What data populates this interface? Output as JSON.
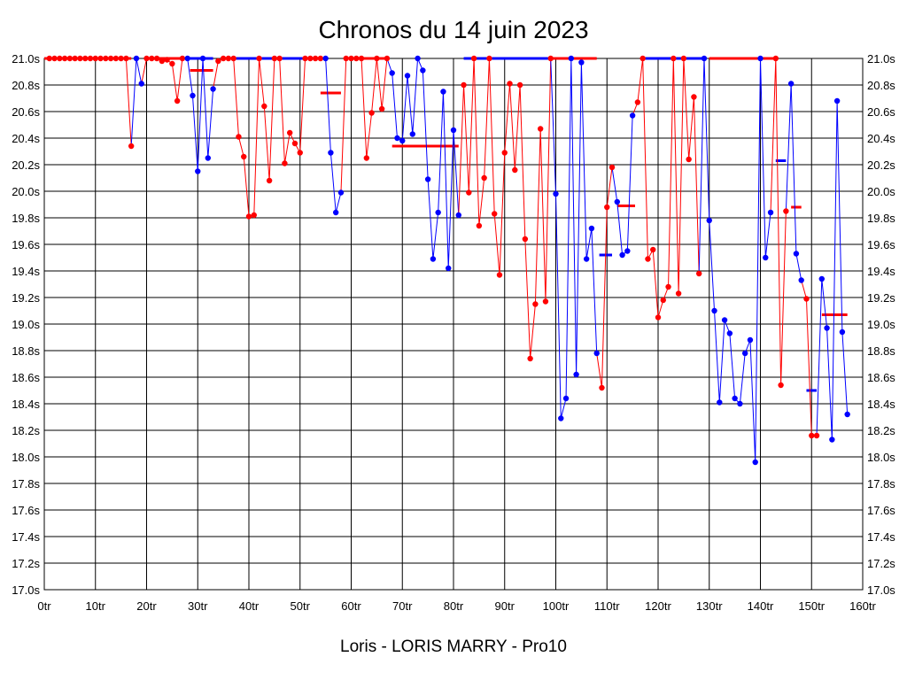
{
  "chart_data": {
    "type": "line",
    "title": "Chronos du 14 juin 2023",
    "footer": "Loris - LORIS MARRY - Pro10",
    "xlim": [
      0,
      160
    ],
    "ylim": [
      17.0,
      21.0
    ],
    "grid": true,
    "x_ticks": [
      0,
      10,
      20,
      30,
      40,
      50,
      60,
      70,
      80,
      90,
      100,
      110,
      120,
      130,
      140,
      150,
      160
    ],
    "x_tick_labels": [
      "0tr",
      "10tr",
      "20tr",
      "30tr",
      "40tr",
      "50tr",
      "60tr",
      "70tr",
      "80tr",
      "90tr",
      "100tr",
      "110tr",
      "120tr",
      "130tr",
      "140tr",
      "150tr",
      "160tr"
    ],
    "y_ticks": [
      17.0,
      17.2,
      17.4,
      17.6,
      17.8,
      18.0,
      18.2,
      18.4,
      18.6,
      18.8,
      19.0,
      19.2,
      19.4,
      19.6,
      19.8,
      20.0,
      20.2,
      20.4,
      20.6,
      20.8,
      21.0
    ],
    "y_tick_labels": [
      "17.0s",
      "17.2s",
      "17.4s",
      "17.6s",
      "17.8s",
      "18.0s",
      "18.2s",
      "18.4s",
      "18.6s",
      "18.8s",
      "19.0s",
      "19.2s",
      "19.4s",
      "19.6s",
      "19.8s",
      "20.0s",
      "20.2s",
      "20.4s",
      "20.6s",
      "20.8s",
      "21.0s"
    ],
    "colors": {
      "red": "#ff0000",
      "blue": "#0000ff",
      "grid": "#000000"
    },
    "segments": [
      {
        "color": "red",
        "points": [
          [
            1,
            21.0
          ],
          [
            2,
            21.0
          ],
          [
            3,
            21.0
          ],
          [
            4,
            21.0
          ],
          [
            5,
            21.0
          ],
          [
            6,
            21.0
          ],
          [
            7,
            21.0
          ],
          [
            8,
            21.0
          ],
          [
            9,
            21.0
          ],
          [
            10,
            21.0
          ],
          [
            11,
            21.0
          ],
          [
            12,
            21.0
          ],
          [
            13,
            21.0
          ],
          [
            14,
            21.0
          ],
          [
            15,
            21.0
          ],
          [
            16,
            21.0
          ],
          [
            17,
            20.34
          ]
        ]
      },
      {
        "color": "blue",
        "points": [
          [
            18,
            21.0
          ],
          [
            19,
            20.81
          ]
        ]
      },
      {
        "color": "red",
        "points": [
          [
            20,
            21.0
          ],
          [
            21,
            21.0
          ],
          [
            22,
            21.0
          ],
          [
            23,
            20.98
          ],
          [
            24,
            20.99
          ],
          [
            25,
            20.96
          ],
          [
            26,
            20.68
          ],
          [
            27,
            21.0
          ]
        ]
      },
      {
        "color": "blue",
        "points": [
          [
            28,
            21.0
          ],
          [
            29,
            20.72
          ],
          [
            30,
            20.15
          ],
          [
            31,
            21.0
          ],
          [
            32,
            20.25
          ],
          [
            33,
            20.77
          ]
        ]
      },
      {
        "color": "red",
        "points": [
          [
            34,
            20.98
          ],
          [
            35,
            21.0
          ],
          [
            36,
            21.0
          ],
          [
            37,
            21.0
          ],
          [
            38,
            20.41
          ],
          [
            39,
            20.26
          ],
          [
            40,
            19.81
          ],
          [
            41,
            19.82
          ],
          [
            42,
            21.0
          ],
          [
            43,
            20.64
          ],
          [
            44,
            20.08
          ],
          [
            45,
            21.0
          ],
          [
            46,
            21.0
          ],
          [
            47,
            20.21
          ],
          [
            48,
            20.44
          ],
          [
            49,
            20.36
          ],
          [
            50,
            20.29
          ],
          [
            51,
            21.0
          ],
          [
            52,
            21.0
          ],
          [
            53,
            21.0
          ],
          [
            54,
            21.0
          ]
        ]
      },
      {
        "color": "blue",
        "points": [
          [
            55,
            21.0
          ],
          [
            56,
            20.29
          ],
          [
            57,
            19.84
          ],
          [
            58,
            19.99
          ]
        ]
      },
      {
        "color": "red",
        "points": [
          [
            59,
            21.0
          ],
          [
            60,
            21.0
          ],
          [
            61,
            21.0
          ],
          [
            62,
            21.0
          ],
          [
            63,
            20.25
          ],
          [
            64,
            20.59
          ],
          [
            65,
            21.0
          ],
          [
            66,
            20.62
          ],
          [
            67,
            21.0
          ]
        ]
      },
      {
        "color": "blue",
        "points": [
          [
            68,
            20.89
          ],
          [
            69,
            20.4
          ],
          [
            70,
            20.38
          ],
          [
            71,
            20.87
          ],
          [
            72,
            20.43
          ],
          [
            73,
            21.0
          ],
          [
            74,
            20.91
          ],
          [
            75,
            20.09
          ],
          [
            76,
            19.49
          ],
          [
            77,
            19.84
          ],
          [
            78,
            20.75
          ],
          [
            79,
            19.42
          ],
          [
            80,
            20.46
          ],
          [
            81,
            19.82
          ]
        ]
      },
      {
        "color": "red",
        "points": [
          [
            82,
            20.8
          ],
          [
            83,
            19.99
          ],
          [
            84,
            21.0
          ],
          [
            85,
            19.74
          ],
          [
            86,
            20.1
          ],
          [
            87,
            21.0
          ],
          [
            88,
            19.83
          ],
          [
            89,
            19.37
          ],
          [
            90,
            20.29
          ],
          [
            91,
            20.81
          ],
          [
            92,
            20.16
          ],
          [
            93,
            20.8
          ],
          [
            94,
            19.64
          ],
          [
            95,
            18.74
          ],
          [
            96,
            19.15
          ],
          [
            97,
            20.47
          ],
          [
            98,
            19.17
          ],
          [
            99,
            21.0
          ]
        ]
      },
      {
        "color": "blue",
        "points": [
          [
            100,
            19.98
          ],
          [
            101,
            18.29
          ],
          [
            102,
            18.44
          ],
          [
            103,
            21.0
          ],
          [
            104,
            18.62
          ],
          [
            105,
            20.97
          ],
          [
            106,
            19.49
          ],
          [
            107,
            19.72
          ],
          [
            108,
            18.78
          ]
        ]
      },
      {
        "color": "red",
        "points": [
          [
            109,
            18.52
          ],
          [
            110,
            19.88
          ],
          [
            111,
            20.18
          ]
        ]
      },
      {
        "color": "blue",
        "points": [
          [
            112,
            19.92
          ],
          [
            113,
            19.52
          ],
          [
            114,
            19.55
          ],
          [
            115,
            20.57
          ]
        ]
      },
      {
        "color": "red",
        "points": [
          [
            116,
            20.67
          ],
          [
            117,
            21.0
          ],
          [
            118,
            19.49
          ],
          [
            119,
            19.56
          ],
          [
            120,
            19.05
          ],
          [
            121,
            19.18
          ],
          [
            122,
            19.28
          ],
          [
            123,
            21.0
          ],
          [
            124,
            19.23
          ],
          [
            125,
            21.0
          ],
          [
            126,
            20.24
          ],
          [
            127,
            20.71
          ],
          [
            128,
            19.38
          ]
        ]
      },
      {
        "color": "blue",
        "points": [
          [
            129,
            21.0
          ],
          [
            130,
            19.78
          ],
          [
            131,
            19.1
          ],
          [
            132,
            18.41
          ],
          [
            133,
            19.03
          ],
          [
            134,
            18.93
          ],
          [
            135,
            18.44
          ],
          [
            136,
            18.4
          ],
          [
            137,
            18.78
          ],
          [
            138,
            18.88
          ],
          [
            139,
            17.96
          ],
          [
            140,
            21.0
          ],
          [
            141,
            19.5
          ],
          [
            142,
            19.84
          ]
        ]
      },
      {
        "color": "red",
        "points": [
          [
            143,
            21.0
          ],
          [
            144,
            18.54
          ],
          [
            145,
            19.85
          ]
        ]
      },
      {
        "color": "blue",
        "points": [
          [
            146,
            20.81
          ],
          [
            147,
            19.53
          ],
          [
            148,
            19.33
          ]
        ]
      },
      {
        "color": "red",
        "points": [
          [
            149,
            19.19
          ],
          [
            150,
            18.16
          ],
          [
            151,
            18.16
          ]
        ]
      },
      {
        "color": "blue",
        "points": [
          [
            152,
            19.34
          ],
          [
            153,
            18.97
          ],
          [
            154,
            18.13
          ],
          [
            155,
            20.68
          ],
          [
            156,
            18.94
          ],
          [
            157,
            18.32
          ]
        ]
      }
    ],
    "averages": [
      {
        "color": "red",
        "y": 21.0,
        "x": [
          0,
          17
        ]
      },
      {
        "color": "red",
        "y": 21.0,
        "x": [
          20,
          27
        ]
      },
      {
        "color": "blue",
        "y": 21.0,
        "x": [
          28,
          33
        ]
      },
      {
        "color": "red",
        "y": 20.91,
        "x": [
          28.5,
          33
        ]
      },
      {
        "color": "blue",
        "y": 21.0,
        "x": [
          37,
          55
        ]
      },
      {
        "color": "red",
        "y": 20.74,
        "x": [
          54,
          58
        ]
      },
      {
        "color": "red",
        "y": 21.0,
        "x": [
          60,
          67
        ]
      },
      {
        "color": "red",
        "y": 20.34,
        "x": [
          68,
          81
        ]
      },
      {
        "color": "blue",
        "y": 21.0,
        "x": [
          82,
          99
        ]
      },
      {
        "color": "red",
        "y": 21.0,
        "x": [
          99,
          108
        ]
      },
      {
        "color": "blue",
        "y": 19.52,
        "x": [
          108.5,
          111
        ]
      },
      {
        "color": "red",
        "y": 19.89,
        "x": [
          112,
          115.5
        ]
      },
      {
        "color": "blue",
        "y": 21.0,
        "x": [
          117,
          129
        ]
      },
      {
        "color": "red",
        "y": 21.0,
        "x": [
          130,
          143
        ]
      },
      {
        "color": "blue",
        "y": 20.23,
        "x": [
          143,
          145
        ]
      },
      {
        "color": "red",
        "y": 19.88,
        "x": [
          146,
          148
        ]
      },
      {
        "color": "blue",
        "y": 18.5,
        "x": [
          149,
          151
        ]
      },
      {
        "color": "red",
        "y": 19.07,
        "x": [
          152,
          157
        ]
      }
    ]
  }
}
